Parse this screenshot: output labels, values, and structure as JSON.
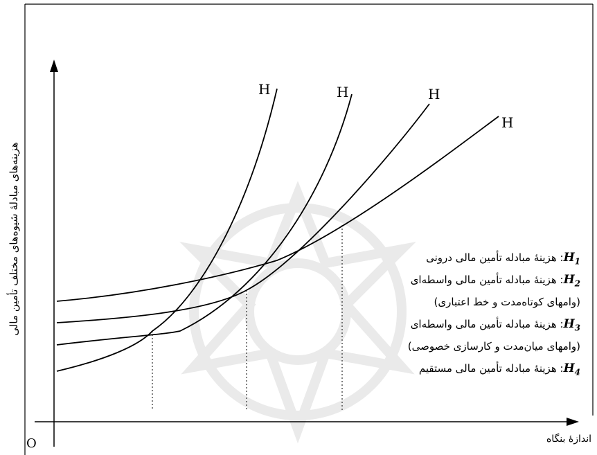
{
  "axes": {
    "y_label": "هزینه‌های مبادلهٔ شیوه‌های مختلف تأمین مالی",
    "x_label": "اندازهٔ بنگاه",
    "origin_label": "O"
  },
  "curve_labels": [
    "H",
    "H",
    "H",
    "H"
  ],
  "legend": [
    {
      "key": "H",
      "sub": "1",
      "text": ": هزینهٔ مبادله تأمین مالی درونی"
    },
    {
      "key": "H",
      "sub": "2",
      "text": ": هزینهٔ مبادله تأمین مالی واسطه‌ای"
    },
    {
      "key": "",
      "sub": "",
      "text": "(وامهای کوتاه‌مدت و خط اعتباری)"
    },
    {
      "key": "H",
      "sub": "3",
      "text": ": هزینهٔ مبادله تأمین مالی واسطه‌ای"
    },
    {
      "key": "",
      "sub": "",
      "text": "(وامهای میان‌مدت و کارسازی خصوصی)"
    },
    {
      "key": "H",
      "sub": "4",
      "text": ": هزینهٔ مبادله تأمین مالی مستقیم"
    }
  ],
  "colors": {
    "line": "#000000",
    "watermark": "#d9d9d9"
  }
}
